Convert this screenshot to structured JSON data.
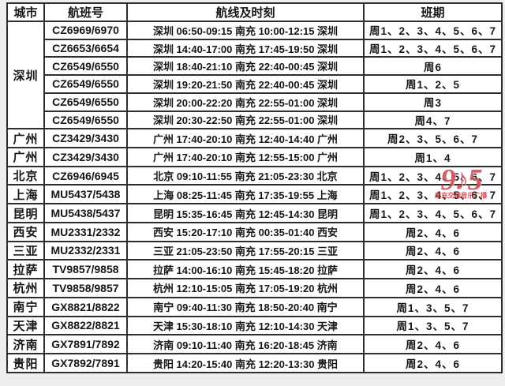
{
  "watermark": {
    "big": "9♪5",
    "small": "南充交通音乐广播",
    "color": "#cc3a42"
  },
  "table": {
    "headers": {
      "city": "城市",
      "flight_no": "航班号",
      "route": "航线及时刻",
      "schedule": "班期"
    },
    "rows": [
      {
        "city": "深圳",
        "city_rowspan": 6,
        "flight_no": "CZ6969/6970",
        "route": "深圳 06:50-09:15 南充 10:00-12:15 深圳",
        "schedule": "周1、2、3、4、5、6、7"
      },
      {
        "city": null,
        "flight_no": "CZ6653/6654",
        "route": "深圳 14:40-17:00 南充 17:45-19:50 深圳",
        "schedule": "周1、2、3、4、5、6、7"
      },
      {
        "city": null,
        "flight_no": "CZ6549/6550",
        "route": "深圳 18:40-21:10 南充 22:40-00:45 深圳",
        "schedule": "周6"
      },
      {
        "city": null,
        "flight_no": "CZ6549/6550",
        "route": "深圳 19:20-21:50 南充 22:40-00:45 深圳",
        "schedule": "周1、2、5"
      },
      {
        "city": null,
        "flight_no": "CZ6549/6550",
        "route": "深圳 20:00-22:20 南充 22:55-01:00 深圳",
        "schedule": "周3"
      },
      {
        "city": null,
        "flight_no": "CZ6549/6550",
        "route": "深圳 20:30-22:50 南充 22:55-01:00 深圳",
        "schedule": "周4、7"
      },
      {
        "city": "广州",
        "flight_no": "CZ3429/3430",
        "route": "广州 17:40-20:10 南充 12:40-14:40 广州",
        "schedule": "周2、3、5、6、7"
      },
      {
        "city": "广州",
        "flight_no": "CZ3429/3430",
        "route": "广州 17:40-20:10 南充 12:55-15:00 广州",
        "schedule": "周1、4"
      },
      {
        "city": "北京",
        "flight_no": "CZ6946/6945",
        "route": "北京 09:10-11:55 南充 21:05-23:30 北京",
        "schedule": "周1、2、3、4、5、6、7"
      },
      {
        "city": "上海",
        "flight_no": "MU5437/5438",
        "route": "上海 08:25-11:45 南充 17:35-19:55 上海",
        "schedule": "周1、2、3、4、5、6、7"
      },
      {
        "city": "昆明",
        "flight_no": "MU5438/5437",
        "route": "昆明 15:35-16:45 南充 12:45-14:30 昆明",
        "schedule": "周1、2、3、4、5、6、7"
      },
      {
        "city": "西安",
        "flight_no": "MU2331/2332",
        "route": "西安 15:20-17:10 南充 00:35-01:40 西安",
        "schedule": "周2、4、6"
      },
      {
        "city": "三亚",
        "flight_no": "MU2332/2331",
        "route": "三亚 21:05-23:50 南充 17:55-20:15 三亚",
        "schedule": "周2、4、6"
      },
      {
        "city": "拉萨",
        "flight_no": "TV9857/9858",
        "route": "拉萨 14:00-16:10 南充 15:45-18:20 拉萨",
        "schedule": "周2、4、6"
      },
      {
        "city": "杭州",
        "flight_no": "TV9858/9857",
        "route": "杭州 12:10-15:05 南充 17:05-19:20 杭州",
        "schedule": "周2、4、6"
      },
      {
        "city": "南宁",
        "flight_no": "GX8821/8822",
        "route": "南宁 09:40-11:30 南充 18:50-20:40 南宁",
        "schedule": "周1、3、5、7"
      },
      {
        "city": "天津",
        "flight_no": "GX8822/8821",
        "route": "天津 15:30-18:10 南充 12:10-14:30 天津",
        "schedule": "周1、3、5、7"
      },
      {
        "city": "济南",
        "flight_no": "GX7891/7892",
        "route": "济南 09:10-11:40 南充 16:20-18:45 济南",
        "schedule": "周2、4、6"
      },
      {
        "city": "贵阳",
        "flight_no": "GX7892/7891",
        "route": "贵阳 14:20-15:40 南充 12:20-13:30 贵阳",
        "schedule": "周2、4、6"
      }
    ]
  }
}
